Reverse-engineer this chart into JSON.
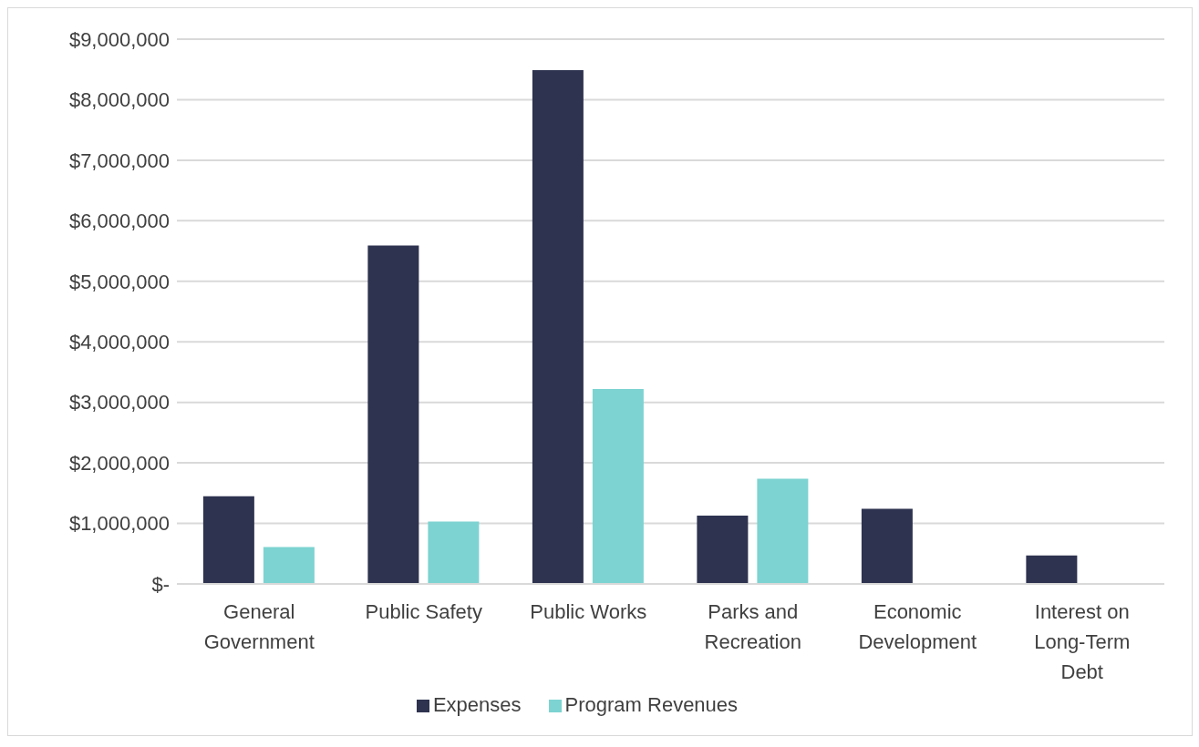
{
  "chart_data": {
    "type": "bar",
    "categories": [
      "General Government",
      "Public Safety",
      "Public Works",
      "Parks and Recreation",
      "Economic Development",
      "Interest on Long-Term Debt"
    ],
    "series": [
      {
        "name": "Expenses",
        "color": "#2e3350",
        "values": [
          1450000,
          5590000,
          8490000,
          1130000,
          1240000,
          470000
        ]
      },
      {
        "name": "Program Revenues",
        "color": "#7dd3d1",
        "values": [
          610000,
          1030000,
          3220000,
          1740000,
          null,
          null
        ]
      }
    ],
    "ylim": [
      0,
      9000000
    ],
    "yticks": [
      {
        "value": 0,
        "label": "$-"
      },
      {
        "value": 1000000,
        "label": "$1,000,000"
      },
      {
        "value": 2000000,
        "label": "$2,000,000"
      },
      {
        "value": 3000000,
        "label": "$3,000,000"
      },
      {
        "value": 4000000,
        "label": "$4,000,000"
      },
      {
        "value": 5000000,
        "label": "$5,000,000"
      },
      {
        "value": 6000000,
        "label": "$6,000,000"
      },
      {
        "value": 7000000,
        "label": "$7,000,000"
      },
      {
        "value": 8000000,
        "label": "$8,000,000"
      },
      {
        "value": 9000000,
        "label": "$9,000,000"
      }
    ],
    "grid": "y",
    "legend": "bottom"
  }
}
